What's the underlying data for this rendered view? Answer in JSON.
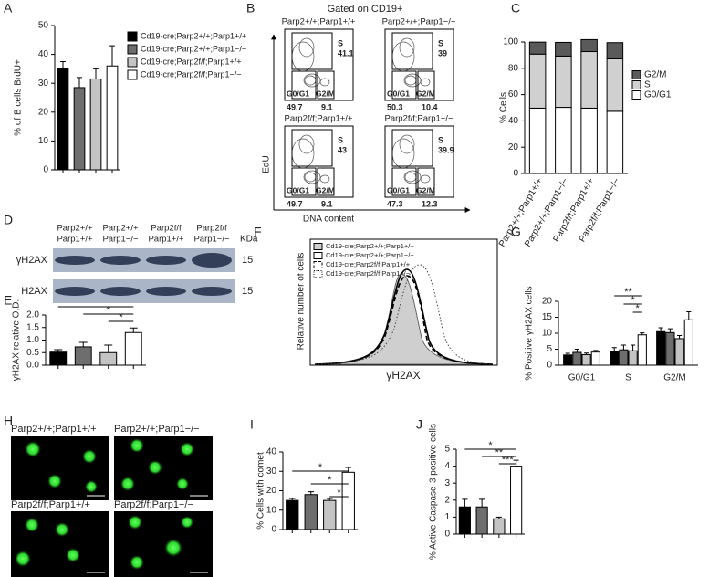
{
  "chart_data": [
    {
      "type": "bar",
      "panel": "A",
      "y_label": "% of B cells BrdU+",
      "values": [
        35,
        28.5,
        31.5,
        36
      ],
      "errors": [
        2.5,
        3.5,
        3.5,
        7
      ],
      "colors": [
        "#000000",
        "#6e6e6e",
        "#c4c4c4",
        "#ffffff"
      ],
      "legend": [
        "Cd19-cre;Parp2+/+;Parp1+/+",
        "Cd19-cre;Parp2+/+;Parp1−/−",
        "Cd19-cre;Parp2f/f;Parp1+/+",
        "Cd19-cre;Parp2f/f;Parp1−/−"
      ],
      "ylim": [
        0,
        50
      ],
      "yticks": [
        0,
        10,
        20,
        30,
        40,
        50
      ]
    },
    {
      "type": "stacked-bar",
      "panel": "C",
      "y_label": "% Cells",
      "categories": [
        "Parp2+/+;Parp1+/+",
        "Parp2+/+;Parp1−/−",
        "Parp2f/f;Parp1+/+",
        "Parp2f/f;Parp1−/−"
      ],
      "series": [
        {
          "name": "G0/G1",
          "color": "#ffffff",
          "values": [
            49.7,
            50.3,
            49.7,
            47.3
          ]
        },
        {
          "name": "S",
          "color": "#d0d0d0",
          "values": [
            41.1,
            39,
            43,
            39.9
          ]
        },
        {
          "name": "G2/M",
          "color": "#5a5a5a",
          "values": [
            9.1,
            10.4,
            9.1,
            12.3
          ]
        }
      ],
      "ylim": [
        0,
        100
      ],
      "yticks": [
        0,
        20,
        40,
        60,
        80,
        100
      ]
    },
    {
      "type": "bar",
      "panel": "E",
      "y_label": "γH2AX relative O.D.",
      "values": [
        0.52,
        0.73,
        0.5,
        1.3
      ],
      "errors": [
        0.1,
        0.18,
        0.3,
        0.18
      ],
      "colors": [
        "#000000",
        "#6e6e6e",
        "#c4c4c4",
        "#ffffff"
      ],
      "annotations": [
        "*",
        "*",
        "*"
      ],
      "ylim": [
        0,
        2
      ],
      "yticks": [
        {
          "value": 0,
          "label": "0.0"
        },
        {
          "value": 0.5,
          "label": "0.5"
        },
        {
          "value": 1,
          "label": "1.0"
        },
        {
          "value": 1.5,
          "label": "1.5"
        },
        {
          "value": 2,
          "label": "2.0"
        }
      ]
    },
    {
      "type": "grouped-bar",
      "panel": "G",
      "y_label": "% Positive γH2AX cells",
      "categories": [
        "G0/G1",
        "S",
        "G2/M"
      ],
      "series": [
        {
          "color": "#000000",
          "values": [
            3.2,
            4.3,
            10.5
          ],
          "errors": [
            0.5,
            1.2,
            1.2
          ]
        },
        {
          "color": "#6e6e6e",
          "values": [
            4,
            4.8,
            10.2
          ],
          "errors": [
            1,
            1.5,
            1.2
          ]
        },
        {
          "color": "#c4c4c4",
          "values": [
            3.3,
            4.5,
            8.3
          ],
          "errors": [
            0.5,
            1.8,
            1
          ]
        },
        {
          "color": "#ffffff",
          "values": [
            4.1,
            9.5,
            14.2
          ],
          "errors": [
            0.5,
            0.6,
            2.5
          ]
        }
      ],
      "annotations": [
        "**",
        "*",
        "*"
      ],
      "ylim": [
        0,
        20
      ],
      "yticks": [
        0,
        5,
        10,
        15,
        20
      ]
    },
    {
      "type": "bar",
      "panel": "I",
      "y_label": "% Cells with comet",
      "values": [
        15,
        18,
        15,
        29.5
      ],
      "errors": [
        1,
        1.5,
        1,
        2.5
      ],
      "colors": [
        "#000000",
        "#6e6e6e",
        "#c4c4c4",
        "#ffffff"
      ],
      "annotations": [
        "*",
        "*",
        "*"
      ],
      "ylim": [
        0,
        40
      ],
      "yticks": [
        0,
        10,
        20,
        30,
        40
      ]
    },
    {
      "type": "bar",
      "panel": "J",
      "y_label": "% Active Caspase-3 positive cells",
      "values": [
        1.6,
        1.6,
        0.9,
        4
      ],
      "errors": [
        0.45,
        0.45,
        0.1,
        0.35
      ],
      "colors": [
        "#000000",
        "#6e6e6e",
        "#c4c4c4",
        "#ffffff"
      ],
      "annotations": [
        "*",
        "**",
        "***"
      ],
      "ylim": [
        0,
        5
      ],
      "yticks": [
        0,
        1,
        2,
        3,
        4,
        5
      ]
    }
  ],
  "flow": {
    "panel": "B",
    "title": "Gated on CD19+",
    "y_label": "EdU",
    "x_label": "DNA content",
    "gate_labels": [
      "S",
      "G0/G1",
      "G2/M"
    ],
    "plots": [
      {
        "title": "Parp2+/+;Parp1+/+",
        "values": [
          41.1,
          49.7,
          9.1
        ]
      },
      {
        "title": "Parp2+/+;Parp1−/−",
        "values": [
          39,
          50.3,
          10.4
        ]
      },
      {
        "title": "Parp2f/f;Parp1+/+",
        "values": [
          43,
          49.7,
          9.1
        ]
      },
      {
        "title": "Parp2f/f;Parp1−/−",
        "values": [
          39.9,
          47.3,
          12.3
        ]
      }
    ]
  },
  "blot": {
    "panel": "D",
    "unit": "KDa",
    "columns": [
      [
        "Parp2+/+",
        "Parp1+/+"
      ],
      [
        "Parp2+/+",
        "Parp1−/−"
      ],
      [
        "Parp2f/f",
        "Parp1+/+"
      ],
      [
        "Parp2f/f",
        "Parp1−/−"
      ]
    ],
    "rows": [
      {
        "label": "γH2AX",
        "kda": 15
      },
      {
        "label": "H2AX",
        "kda": 15
      }
    ]
  },
  "histogram": {
    "panel": "F",
    "y_label": "Relative number of cells",
    "x_label": "γH2AX",
    "legend": [
      "Cd19-cre;Parp2+/+;Parp1+/+",
      "Cd19-cre;Parp2+/+;Parp1−/−",
      "Cd19-cre;Parp2f/f;Parp1+/+",
      "Cd19-cre;Parp2f/f;Parp1−/−"
    ]
  },
  "images": {
    "panel": "H",
    "labels": [
      "Parp2+/+;Parp1+/+",
      "Parp2+/+;Parp1−/−",
      "Parp2f/f;Parp1+/+",
      "Parp2f/f;Parp1−/−"
    ]
  }
}
